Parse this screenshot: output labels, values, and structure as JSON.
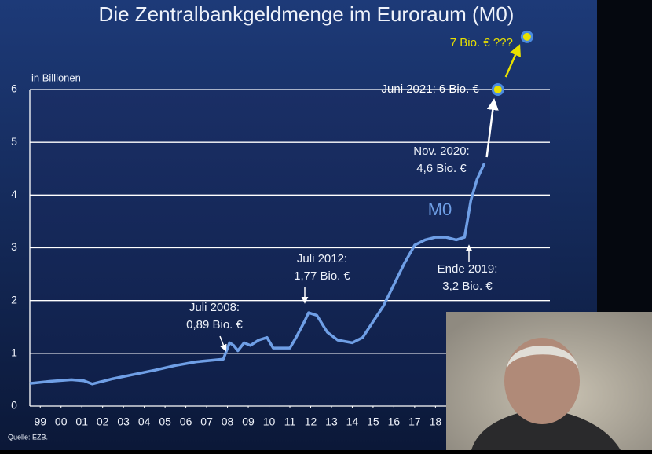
{
  "chart_data": {
    "type": "line",
    "title": "Die Zentralbankgeldmenge im Euroraum (M0)",
    "y_label": "in Billionen",
    "source": "Quelle: EZB.",
    "xlim": [
      1999,
      2024
    ],
    "ylim": [
      0,
      6
    ],
    "yticks": [
      0,
      1,
      2,
      3,
      4,
      5,
      6
    ],
    "xticks": [
      {
        "value": 1999.5,
        "label": "99"
      },
      {
        "value": 2000.5,
        "label": "00"
      },
      {
        "value": 2001.5,
        "label": "01"
      },
      {
        "value": 2002.5,
        "label": "02"
      },
      {
        "value": 2003.5,
        "label": "03"
      },
      {
        "value": 2004.5,
        "label": "04"
      },
      {
        "value": 2005.5,
        "label": "05"
      },
      {
        "value": 2006.5,
        "label": "06"
      },
      {
        "value": 2007.5,
        "label": "07"
      },
      {
        "value": 2008.5,
        "label": "08"
      },
      {
        "value": 2009.5,
        "label": "09"
      },
      {
        "value": 2010.5,
        "label": "10"
      },
      {
        "value": 2011.5,
        "label": "11"
      },
      {
        "value": 2012.5,
        "label": "12"
      },
      {
        "value": 2013.5,
        "label": "13"
      },
      {
        "value": 2014.5,
        "label": "14"
      },
      {
        "value": 2015.5,
        "label": "15"
      },
      {
        "value": 2016.5,
        "label": "16"
      },
      {
        "value": 2017.5,
        "label": "17"
      },
      {
        "value": 2018.5,
        "label": "18"
      }
    ],
    "grid": true,
    "series": [
      {
        "name": "M0",
        "color": "#6f9fe6",
        "x": [
          1999.0,
          2000.0,
          2001.0,
          2001.6,
          2002.0,
          2002.5,
          2003.0,
          2004.0,
          2005.0,
          2006.0,
          2007.0,
          2008.3,
          2008.6,
          2008.8,
          2009.0,
          2009.3,
          2009.6,
          2010.0,
          2010.4,
          2010.7,
          2011.5,
          2011.8,
          2012.2,
          2012.4,
          2012.8,
          2013.3,
          2013.8,
          2014.5,
          2015.0,
          2015.5,
          2016.0,
          2016.5,
          2017.0,
          2017.5,
          2018.0,
          2018.5,
          2019.0,
          2019.5,
          2019.9,
          2020.2,
          2020.5,
          2020.85
        ],
        "values": [
          0.43,
          0.47,
          0.5,
          0.48,
          0.42,
          0.47,
          0.52,
          0.6,
          0.68,
          0.77,
          0.84,
          0.89,
          1.2,
          1.15,
          1.05,
          1.2,
          1.15,
          1.25,
          1.3,
          1.1,
          1.1,
          1.3,
          1.6,
          1.77,
          1.72,
          1.4,
          1.25,
          1.2,
          1.3,
          1.6,
          1.9,
          2.3,
          2.7,
          3.05,
          3.15,
          3.2,
          3.2,
          3.15,
          3.2,
          3.9,
          4.3,
          4.6
        ]
      }
    ],
    "highlights": [
      {
        "x": 2021.5,
        "value": 6,
        "label": "Juni 2021: 6 Bio. €"
      },
      {
        "x": 2022.9,
        "value": 7,
        "label": "7 Bio. € ???"
      }
    ],
    "annotations": [
      [
        "Juli 2008:",
        "0,89 Bio. €"
      ],
      [
        "Juli 2012:",
        "1,77 Bio. €"
      ],
      [
        "Ende 2019:",
        "3,2 Bio. €"
      ],
      [
        "Nov. 2020:",
        "4,6 Bio. €"
      ]
    ]
  }
}
